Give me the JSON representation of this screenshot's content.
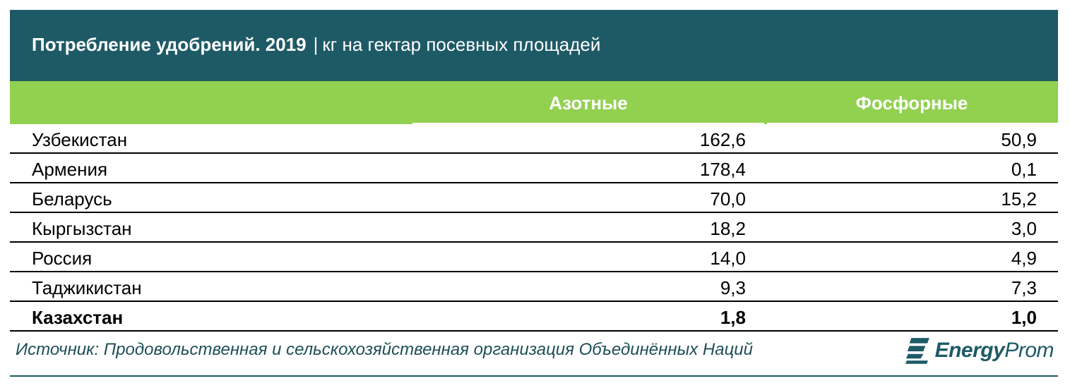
{
  "header": {
    "title": "Потребление удобрений. 2019",
    "separator": "|",
    "unit": "кг на гектар посевных площадей"
  },
  "columns": {
    "col1": "Азотные",
    "col2": "Фосфорные"
  },
  "rows": [
    {
      "country": "Узбекистан",
      "nitrogen": "162,6",
      "phosphate": "50,9",
      "bold": false
    },
    {
      "country": "Армения",
      "nitrogen": "178,4",
      "phosphate": "0,1",
      "bold": false
    },
    {
      "country": "Беларусь",
      "nitrogen": "70,0",
      "phosphate": "15,2",
      "bold": false
    },
    {
      "country": "Кыргызстан",
      "nitrogen": "18,2",
      "phosphate": "3,0",
      "bold": false
    },
    {
      "country": "Россия",
      "nitrogen": "14,0",
      "phosphate": "4,9",
      "bold": false
    },
    {
      "country": "Таджикистан",
      "nitrogen": "9,3",
      "phosphate": "7,3",
      "bold": false
    },
    {
      "country": "Казахстан",
      "nitrogen": "1,8",
      "phosphate": "1,0",
      "bold": true
    }
  ],
  "footer": {
    "source": "Источник: Продовольственная и сельскохозяйственная организация Объединённых Наций",
    "logo_part1": "Energy",
    "logo_part2": "Prom",
    "logo_icon": "energyprom-logo-icon"
  },
  "colors": {
    "title_bg": "#1e5a66",
    "header_bg": "#92d050",
    "source_text": "#1e4f58"
  }
}
